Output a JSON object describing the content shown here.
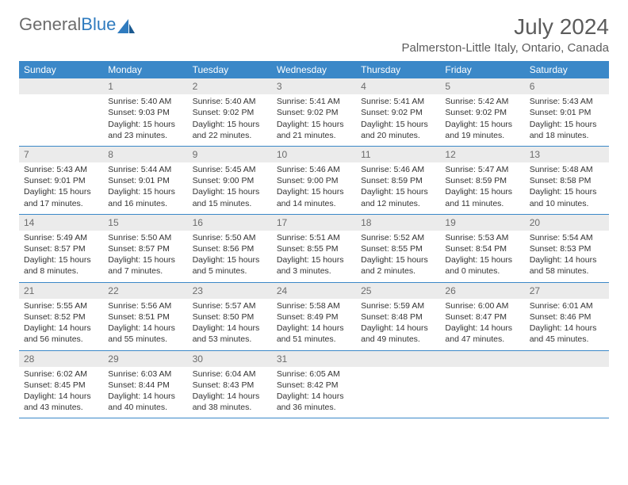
{
  "logo": {
    "text_gray": "General",
    "text_blue": "Blue"
  },
  "title": "July 2024",
  "location": "Palmerston-Little Italy, Ontario, Canada",
  "colors": {
    "header_bg": "#3b88c8",
    "header_text": "#ffffff",
    "daynum_bg": "#ebebeb",
    "daynum_text": "#6c6c6c",
    "body_text": "#333333",
    "title_text": "#5c5c5c",
    "logo_gray": "#6c6c6c",
    "logo_blue": "#2f7bbf",
    "border": "#3b88c8"
  },
  "day_names": [
    "Sunday",
    "Monday",
    "Tuesday",
    "Wednesday",
    "Thursday",
    "Friday",
    "Saturday"
  ],
  "weeks": [
    [
      {
        "day": "",
        "sunrise": "",
        "sunset": "",
        "daylight1": "",
        "daylight2": ""
      },
      {
        "day": "1",
        "sunrise": "Sunrise: 5:40 AM",
        "sunset": "Sunset: 9:03 PM",
        "daylight1": "Daylight: 15 hours",
        "daylight2": "and 23 minutes."
      },
      {
        "day": "2",
        "sunrise": "Sunrise: 5:40 AM",
        "sunset": "Sunset: 9:02 PM",
        "daylight1": "Daylight: 15 hours",
        "daylight2": "and 22 minutes."
      },
      {
        "day": "3",
        "sunrise": "Sunrise: 5:41 AM",
        "sunset": "Sunset: 9:02 PM",
        "daylight1": "Daylight: 15 hours",
        "daylight2": "and 21 minutes."
      },
      {
        "day": "4",
        "sunrise": "Sunrise: 5:41 AM",
        "sunset": "Sunset: 9:02 PM",
        "daylight1": "Daylight: 15 hours",
        "daylight2": "and 20 minutes."
      },
      {
        "day": "5",
        "sunrise": "Sunrise: 5:42 AM",
        "sunset": "Sunset: 9:02 PM",
        "daylight1": "Daylight: 15 hours",
        "daylight2": "and 19 minutes."
      },
      {
        "day": "6",
        "sunrise": "Sunrise: 5:43 AM",
        "sunset": "Sunset: 9:01 PM",
        "daylight1": "Daylight: 15 hours",
        "daylight2": "and 18 minutes."
      }
    ],
    [
      {
        "day": "7",
        "sunrise": "Sunrise: 5:43 AM",
        "sunset": "Sunset: 9:01 PM",
        "daylight1": "Daylight: 15 hours",
        "daylight2": "and 17 minutes."
      },
      {
        "day": "8",
        "sunrise": "Sunrise: 5:44 AM",
        "sunset": "Sunset: 9:01 PM",
        "daylight1": "Daylight: 15 hours",
        "daylight2": "and 16 minutes."
      },
      {
        "day": "9",
        "sunrise": "Sunrise: 5:45 AM",
        "sunset": "Sunset: 9:00 PM",
        "daylight1": "Daylight: 15 hours",
        "daylight2": "and 15 minutes."
      },
      {
        "day": "10",
        "sunrise": "Sunrise: 5:46 AM",
        "sunset": "Sunset: 9:00 PM",
        "daylight1": "Daylight: 15 hours",
        "daylight2": "and 14 minutes."
      },
      {
        "day": "11",
        "sunrise": "Sunrise: 5:46 AM",
        "sunset": "Sunset: 8:59 PM",
        "daylight1": "Daylight: 15 hours",
        "daylight2": "and 12 minutes."
      },
      {
        "day": "12",
        "sunrise": "Sunrise: 5:47 AM",
        "sunset": "Sunset: 8:59 PM",
        "daylight1": "Daylight: 15 hours",
        "daylight2": "and 11 minutes."
      },
      {
        "day": "13",
        "sunrise": "Sunrise: 5:48 AM",
        "sunset": "Sunset: 8:58 PM",
        "daylight1": "Daylight: 15 hours",
        "daylight2": "and 10 minutes."
      }
    ],
    [
      {
        "day": "14",
        "sunrise": "Sunrise: 5:49 AM",
        "sunset": "Sunset: 8:57 PM",
        "daylight1": "Daylight: 15 hours",
        "daylight2": "and 8 minutes."
      },
      {
        "day": "15",
        "sunrise": "Sunrise: 5:50 AM",
        "sunset": "Sunset: 8:57 PM",
        "daylight1": "Daylight: 15 hours",
        "daylight2": "and 7 minutes."
      },
      {
        "day": "16",
        "sunrise": "Sunrise: 5:50 AM",
        "sunset": "Sunset: 8:56 PM",
        "daylight1": "Daylight: 15 hours",
        "daylight2": "and 5 minutes."
      },
      {
        "day": "17",
        "sunrise": "Sunrise: 5:51 AM",
        "sunset": "Sunset: 8:55 PM",
        "daylight1": "Daylight: 15 hours",
        "daylight2": "and 3 minutes."
      },
      {
        "day": "18",
        "sunrise": "Sunrise: 5:52 AM",
        "sunset": "Sunset: 8:55 PM",
        "daylight1": "Daylight: 15 hours",
        "daylight2": "and 2 minutes."
      },
      {
        "day": "19",
        "sunrise": "Sunrise: 5:53 AM",
        "sunset": "Sunset: 8:54 PM",
        "daylight1": "Daylight: 15 hours",
        "daylight2": "and 0 minutes."
      },
      {
        "day": "20",
        "sunrise": "Sunrise: 5:54 AM",
        "sunset": "Sunset: 8:53 PM",
        "daylight1": "Daylight: 14 hours",
        "daylight2": "and 58 minutes."
      }
    ],
    [
      {
        "day": "21",
        "sunrise": "Sunrise: 5:55 AM",
        "sunset": "Sunset: 8:52 PM",
        "daylight1": "Daylight: 14 hours",
        "daylight2": "and 56 minutes."
      },
      {
        "day": "22",
        "sunrise": "Sunrise: 5:56 AM",
        "sunset": "Sunset: 8:51 PM",
        "daylight1": "Daylight: 14 hours",
        "daylight2": "and 55 minutes."
      },
      {
        "day": "23",
        "sunrise": "Sunrise: 5:57 AM",
        "sunset": "Sunset: 8:50 PM",
        "daylight1": "Daylight: 14 hours",
        "daylight2": "and 53 minutes."
      },
      {
        "day": "24",
        "sunrise": "Sunrise: 5:58 AM",
        "sunset": "Sunset: 8:49 PM",
        "daylight1": "Daylight: 14 hours",
        "daylight2": "and 51 minutes."
      },
      {
        "day": "25",
        "sunrise": "Sunrise: 5:59 AM",
        "sunset": "Sunset: 8:48 PM",
        "daylight1": "Daylight: 14 hours",
        "daylight2": "and 49 minutes."
      },
      {
        "day": "26",
        "sunrise": "Sunrise: 6:00 AM",
        "sunset": "Sunset: 8:47 PM",
        "daylight1": "Daylight: 14 hours",
        "daylight2": "and 47 minutes."
      },
      {
        "day": "27",
        "sunrise": "Sunrise: 6:01 AM",
        "sunset": "Sunset: 8:46 PM",
        "daylight1": "Daylight: 14 hours",
        "daylight2": "and 45 minutes."
      }
    ],
    [
      {
        "day": "28",
        "sunrise": "Sunrise: 6:02 AM",
        "sunset": "Sunset: 8:45 PM",
        "daylight1": "Daylight: 14 hours",
        "daylight2": "and 43 minutes."
      },
      {
        "day": "29",
        "sunrise": "Sunrise: 6:03 AM",
        "sunset": "Sunset: 8:44 PM",
        "daylight1": "Daylight: 14 hours",
        "daylight2": "and 40 minutes."
      },
      {
        "day": "30",
        "sunrise": "Sunrise: 6:04 AM",
        "sunset": "Sunset: 8:43 PM",
        "daylight1": "Daylight: 14 hours",
        "daylight2": "and 38 minutes."
      },
      {
        "day": "31",
        "sunrise": "Sunrise: 6:05 AM",
        "sunset": "Sunset: 8:42 PM",
        "daylight1": "Daylight: 14 hours",
        "daylight2": "and 36 minutes."
      },
      {
        "day": "",
        "sunrise": "",
        "sunset": "",
        "daylight1": "",
        "daylight2": ""
      },
      {
        "day": "",
        "sunrise": "",
        "sunset": "",
        "daylight1": "",
        "daylight2": ""
      },
      {
        "day": "",
        "sunrise": "",
        "sunset": "",
        "daylight1": "",
        "daylight2": ""
      }
    ]
  ]
}
